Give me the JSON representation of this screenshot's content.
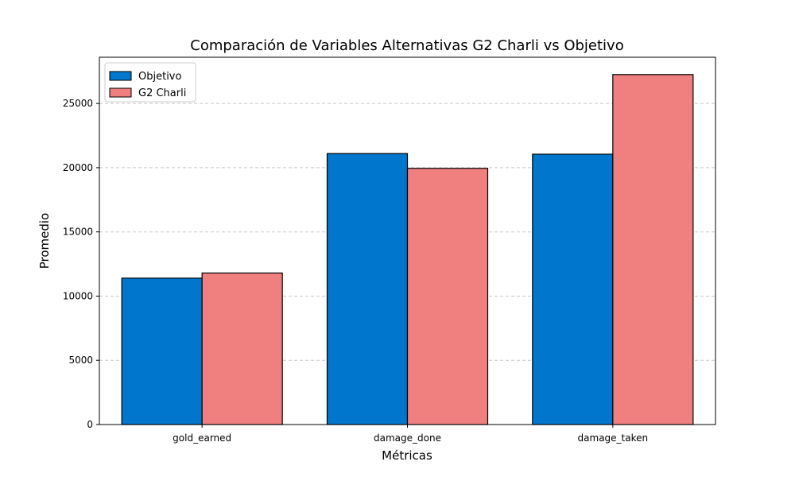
{
  "chart_data": {
    "type": "bar",
    "title": "Comparación de Variables Alternativas G2 Charli vs Objetivo",
    "xlabel": "Métricas",
    "ylabel": "Promedio",
    "categories": [
      "gold_earned",
      "damage_done",
      "damage_taken"
    ],
    "series": [
      {
        "name": "Objetivo",
        "color": "#0077cc",
        "values": [
          11400,
          21100,
          21050
        ]
      },
      {
        "name": "G2 Charli",
        "color": "#f08080",
        "values": [
          11800,
          19950,
          27250
        ]
      }
    ],
    "ylim": [
      0,
      28600
    ],
    "yticks": [
      0,
      5000,
      10000,
      15000,
      20000,
      25000
    ],
    "grid": "y-dashed",
    "legend_position": "top-left"
  }
}
